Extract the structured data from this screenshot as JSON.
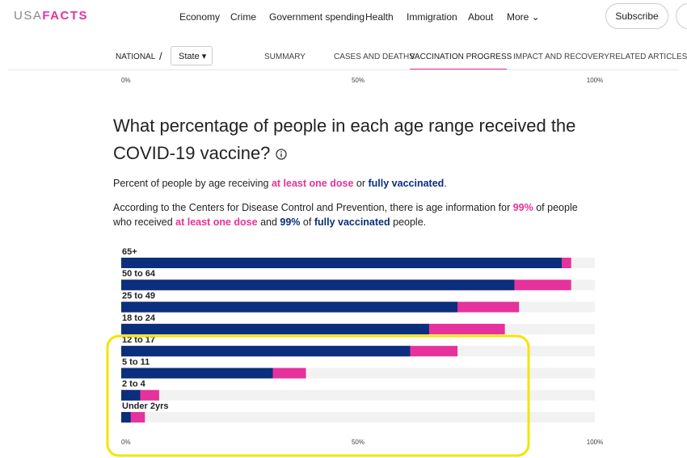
{
  "header": {
    "logo_left": "USA",
    "logo_right": "FACTS",
    "nav": [
      "Economy",
      "Crime",
      "Government spending",
      "Health",
      "Immigration",
      "About",
      "More"
    ],
    "subscribe": "Subscribe"
  },
  "tabs": {
    "scope": "NATIONAL",
    "separator": "/",
    "state": "State",
    "items": [
      "SUMMARY",
      "CASES AND DEATHS",
      "VACCINATION PROGRESS",
      "IMPACT AND RECOVERY",
      "RELATED ARTICLES"
    ],
    "active": 2
  },
  "chart_data": {
    "type": "bar",
    "orientation": "horizontal",
    "title": "What percentage of people in each age range received the COVID-19 vaccine?",
    "subtitle_parts": [
      "Percent of people by age receiving ",
      "or",
      "."
    ],
    "note_parts": [
      "According to the Centers for Disease Control and Prevention, there is age information for",
      "99%",
      "of people who received",
      "and",
      "99%",
      "of",
      "people."
    ],
    "categories": [
      "65+",
      "50 to 64",
      "25 to 49",
      "18 to 24",
      "12 to 17",
      "5 to 11",
      "2 to 4",
      "Under 2yrs"
    ],
    "series": [
      {
        "name": "at least one dose",
        "color": "#e5329c",
        "values": [
          95,
          95,
          84,
          81,
          71,
          39,
          8,
          5
        ]
      },
      {
        "name": "fully vaccinated",
        "color": "#0a2f7c",
        "values": [
          93,
          83,
          71,
          65,
          61,
          32,
          4,
          2
        ]
      }
    ],
    "xlim": [
      0,
      100
    ],
    "xticks": [
      {
        "value": 0,
        "label": "0%"
      },
      {
        "value": 50,
        "label": "50%"
      },
      {
        "value": 100,
        "label": "100%"
      }
    ]
  }
}
